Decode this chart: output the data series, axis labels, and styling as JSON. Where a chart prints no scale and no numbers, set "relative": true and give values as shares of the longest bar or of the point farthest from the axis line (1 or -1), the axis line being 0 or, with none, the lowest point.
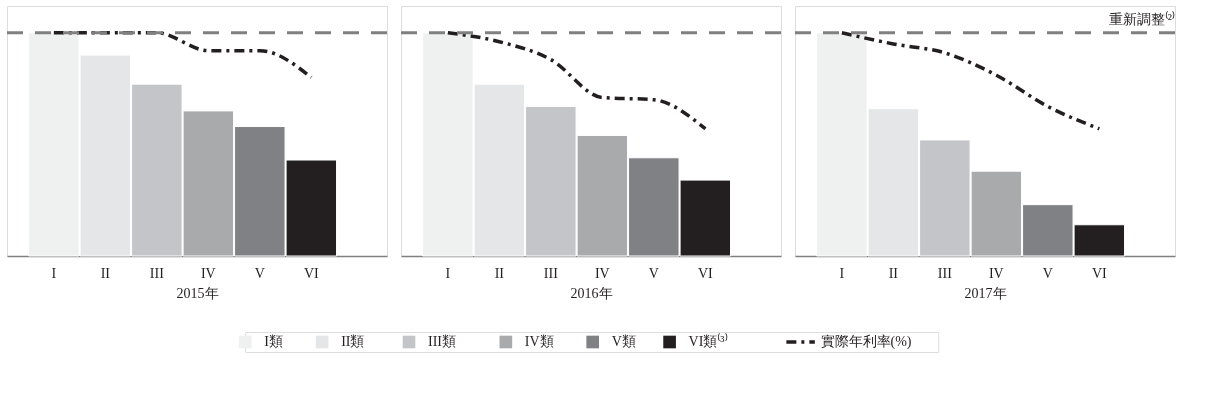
{
  "chart_data": [
    {
      "type": "bar",
      "relative": true,
      "xlabel": "2015年",
      "categories": [
        "I",
        "II",
        "III",
        "IV",
        "V",
        "VI"
      ],
      "legend": "bottom",
      "series": [
        {
          "name": "I類",
          "color": "#eff0f0",
          "values": [
            1.0,
            null,
            null,
            null,
            null,
            null
          ]
        },
        {
          "name": "II類",
          "color": "#e5e6e8",
          "values": [
            null,
            0.9,
            null,
            null,
            null,
            null
          ]
        },
        {
          "name": "III類",
          "color": "#c4c5c8",
          "values": [
            null,
            null,
            0.77,
            null,
            null,
            null
          ]
        },
        {
          "name": "IV類",
          "color": "#a9aaac",
          "values": [
            null,
            null,
            null,
            0.65,
            null,
            null
          ]
        },
        {
          "name": "V類",
          "color": "#808184",
          "values": [
            null,
            null,
            null,
            null,
            0.58,
            null
          ]
        },
        {
          "name": "VI類⁽³⁾",
          "color": "#231f20",
          "values": [
            null,
            null,
            null,
            null,
            null,
            0.43
          ]
        },
        {
          "name": "實際年利率(%)",
          "type": "line",
          "color": "#231f20",
          "line_style": "dashdot",
          "values": [
            1.0,
            1.0,
            1.0,
            0.92,
            0.92,
            0.8
          ]
        }
      ],
      "ref_lines": [
        {
          "axis": "y",
          "value": 1.0,
          "color": "#808080",
          "line_style": "dashed"
        }
      ]
    },
    {
      "type": "bar",
      "relative": true,
      "xlabel": "2016年",
      "categories": [
        "I",
        "II",
        "III",
        "IV",
        "V",
        "VI"
      ],
      "series": [
        {
          "color": "#eff0f0",
          "values": [
            1.0,
            null,
            null,
            null,
            null,
            null
          ]
        },
        {
          "color": "#e5e6e8",
          "values": [
            null,
            0.77,
            null,
            null,
            null,
            null
          ]
        },
        {
          "color": "#c4c5c8",
          "values": [
            null,
            null,
            0.67,
            null,
            null,
            null
          ]
        },
        {
          "color": "#a9aaac",
          "values": [
            null,
            null,
            null,
            0.54,
            null,
            null
          ]
        },
        {
          "color": "#808184",
          "values": [
            null,
            null,
            null,
            null,
            0.44,
            null
          ]
        },
        {
          "color": "#231f20",
          "values": [
            null,
            null,
            null,
            null,
            null,
            0.34
          ]
        },
        {
          "type": "line",
          "color": "#231f20",
          "line_style": "dashdot",
          "values": [
            1.0,
            0.96,
            0.88,
            0.71,
            0.7,
            0.57
          ]
        }
      ],
      "ref_lines": [
        {
          "axis": "y",
          "value": 1.0,
          "color": "#808080",
          "line_style": "dashed"
        }
      ]
    },
    {
      "type": "bar",
      "relative": true,
      "xlabel": "2017年",
      "categories": [
        "I",
        "II",
        "III",
        "IV",
        "V",
        "VI"
      ],
      "series": [
        {
          "color": "#eff0f0",
          "values": [
            1.0,
            null,
            null,
            null,
            null,
            null
          ]
        },
        {
          "color": "#e5e6e8",
          "values": [
            null,
            0.66,
            null,
            null,
            null,
            null
          ]
        },
        {
          "color": "#c4c5c8",
          "values": [
            null,
            null,
            0.52,
            null,
            null,
            null
          ]
        },
        {
          "color": "#a9aaac",
          "values": [
            null,
            null,
            null,
            0.38,
            null,
            null
          ]
        },
        {
          "color": "#808184",
          "values": [
            null,
            null,
            null,
            null,
            0.23,
            null
          ]
        },
        {
          "color": "#231f20",
          "values": [
            null,
            null,
            null,
            null,
            null,
            0.14
          ]
        },
        {
          "type": "line",
          "color": "#231f20",
          "line_style": "dashdot",
          "values": [
            1.0,
            0.95,
            0.91,
            0.81,
            0.67,
            0.57
          ]
        }
      ],
      "ref_lines": [
        {
          "axis": "y",
          "value": 1.0,
          "label": "重新調整⁽²⁾",
          "color": "#808080",
          "line_style": "dashed"
        }
      ]
    }
  ]
}
